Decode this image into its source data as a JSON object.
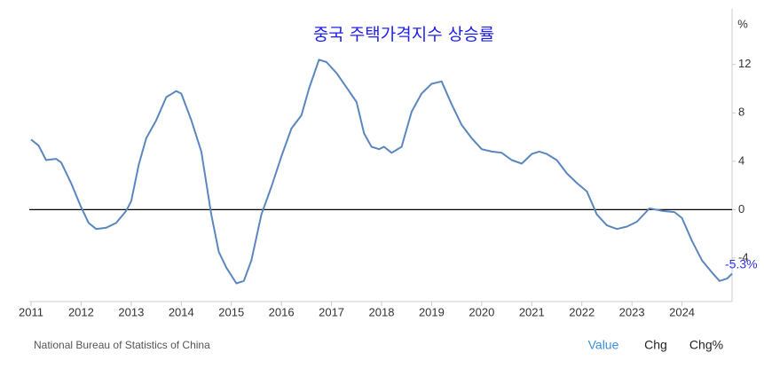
{
  "chart_data": {
    "type": "line",
    "title": "중국 주택가격지수 상승률",
    "y_unit": "%",
    "source": "National Bureau of Statistics of China",
    "tabs": [
      "Value",
      "Chg",
      "Chg%"
    ],
    "active_tab": 0,
    "x": [
      2011.0,
      2011.15,
      2011.3,
      2011.5,
      2011.6,
      2011.8,
      2012.0,
      2012.15,
      2012.3,
      2012.5,
      2012.7,
      2012.9,
      2013.0,
      2013.15,
      2013.3,
      2013.5,
      2013.7,
      2013.9,
      2014.0,
      2014.2,
      2014.4,
      2014.6,
      2014.75,
      2014.9,
      2015.1,
      2015.25,
      2015.4,
      2015.6,
      2015.8,
      2016.0,
      2016.2,
      2016.4,
      2016.55,
      2016.75,
      2016.9,
      2017.1,
      2017.3,
      2017.5,
      2017.65,
      2017.8,
      2017.95,
      2018.05,
      2018.2,
      2018.4,
      2018.6,
      2018.8,
      2019.0,
      2019.2,
      2019.4,
      2019.6,
      2019.8,
      2020.0,
      2020.2,
      2020.4,
      2020.6,
      2020.8,
      2021.0,
      2021.15,
      2021.3,
      2021.5,
      2021.7,
      2021.9,
      2022.1,
      2022.3,
      2022.5,
      2022.7,
      2022.9,
      2023.1,
      2023.35,
      2023.6,
      2023.85,
      2024.0,
      2024.2,
      2024.4,
      2024.6,
      2024.75,
      2024.9,
      2025.0
    ],
    "series": [
      {
        "name": "Value",
        "color": "#5b87bf",
        "values": [
          5.8,
          5.3,
          4.1,
          4.2,
          3.9,
          2.2,
          0.2,
          -1.1,
          -1.6,
          -1.5,
          -1.1,
          -0.1,
          0.7,
          3.7,
          5.9,
          7.4,
          9.3,
          9.8,
          9.6,
          7.4,
          4.8,
          -0.4,
          -3.5,
          -4.8,
          -6.1,
          -5.9,
          -4.2,
          -0.4,
          1.9,
          4.4,
          6.7,
          7.8,
          10.0,
          12.4,
          12.2,
          11.3,
          10.1,
          8.9,
          6.3,
          5.2,
          5.0,
          5.2,
          4.7,
          5.2,
          8.1,
          9.6,
          10.4,
          10.6,
          8.7,
          7.0,
          5.9,
          5.0,
          4.8,
          4.7,
          4.1,
          3.8,
          4.6,
          4.8,
          4.6,
          4.1,
          3.0,
          2.2,
          1.5,
          -0.4,
          -1.3,
          -1.6,
          -1.4,
          -1.0,
          0.1,
          -0.1,
          -0.2,
          -0.7,
          -2.6,
          -4.2,
          -5.2,
          -5.9,
          -5.7,
          -5.3
        ],
        "value_labels": [
          null,
          null,
          null,
          null,
          null,
          null,
          null,
          null,
          null,
          null,
          null,
          null,
          null,
          null,
          null,
          null,
          null,
          null,
          null,
          null,
          null,
          null,
          null,
          null,
          null,
          null,
          null,
          null,
          null,
          null,
          null,
          null,
          null,
          null,
          null,
          null,
          null,
          null,
          null,
          null,
          null,
          null,
          null,
          null,
          null,
          null,
          null,
          null,
          null,
          null,
          null,
          null,
          null,
          null,
          null,
          null,
          null,
          null,
          null,
          null,
          null,
          null,
          null,
          null,
          null,
          null,
          null,
          null,
          null,
          null,
          null,
          null,
          null,
          null,
          null,
          null,
          null,
          "-5.3%"
        ]
      }
    ],
    "xlim": [
      2011,
      2025
    ],
    "xticks": [
      2011,
      2012,
      2013,
      2014,
      2015,
      2016,
      2017,
      2018,
      2019,
      2020,
      2021,
      2022,
      2023,
      2024
    ],
    "ylim": [
      -7.6,
      16.6
    ],
    "yticks": [
      -4,
      0,
      4,
      8,
      12
    ],
    "zero_line_color": "#000000",
    "grid": false
  }
}
